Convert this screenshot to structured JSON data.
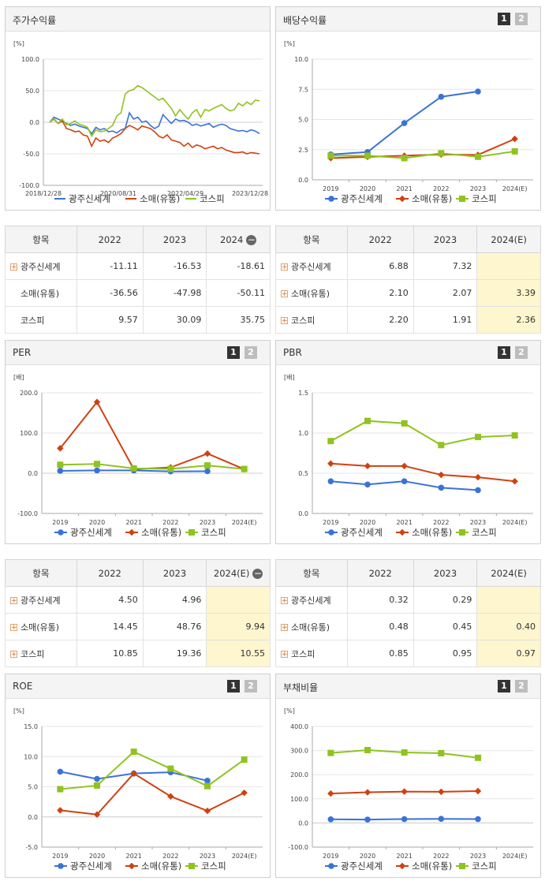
{
  "colors": {
    "company": "#3a72d8",
    "retail": "#d0410f",
    "kospi": "#8fc31f"
  },
  "legend": [
    "광주신세계",
    "소매(유통)",
    "코스피"
  ],
  "panels": {
    "stock": {
      "title": "주가수익률",
      "unit": "[%]",
      "chart_data": {
        "type": "line",
        "title": "주가수익률",
        "ylim": [
          -100,
          100
        ],
        "yticks": [
          "100.0",
          "50.0",
          "0.0",
          "-50.0",
          "-100.0"
        ],
        "xticks": [
          "2018/12/28",
          "2020/08/31",
          "2022/04/29",
          "2023/12/28"
        ],
        "series": [
          {
            "name": "광주신세계",
            "x": [
              0,
              2,
              4,
              6,
              8,
              10,
              12,
              14,
              16,
              18,
              20,
              22,
              24,
              26,
              28,
              30,
              32,
              34,
              36,
              38,
              40,
              42,
              44,
              46,
              48,
              50,
              52,
              54,
              56,
              58,
              60,
              62,
              64,
              66,
              68,
              70,
              72,
              74,
              76,
              78,
              80,
              82,
              84,
              86,
              88,
              90,
              92,
              94,
              96,
              98,
              100
            ],
            "values": [
              0,
              8,
              5,
              2,
              -2,
              -5,
              -3,
              -6,
              -8,
              -10,
              -18,
              -8,
              -12,
              -10,
              -15,
              -14,
              -17,
              -12,
              -10,
              15,
              5,
              8,
              0,
              2,
              -5,
              -10,
              -6,
              12,
              5,
              -2,
              5,
              2,
              3,
              0,
              -5,
              -3,
              -6,
              -4,
              -2,
              -8,
              -5,
              -3,
              -5,
              -10,
              -12,
              -14,
              -13,
              -15,
              -12,
              -14,
              -18
            ]
          },
          {
            "name": "소매(유통)",
            "x": [
              0,
              2,
              4,
              6,
              8,
              10,
              12,
              14,
              16,
              18,
              20,
              22,
              24,
              26,
              28,
              30,
              32,
              34,
              36,
              38,
              40,
              42,
              44,
              46,
              48,
              50,
              52,
              54,
              56,
              58,
              60,
              62,
              64,
              66,
              68,
              70,
              72,
              74,
              76,
              78,
              80,
              82,
              84,
              86,
              88,
              90,
              92,
              94,
              96,
              98,
              100
            ],
            "values": [
              0,
              5,
              -2,
              2,
              -10,
              -12,
              -15,
              -14,
              -20,
              -22,
              -38,
              -25,
              -30,
              -28,
              -32,
              -25,
              -22,
              -18,
              -10,
              -5,
              -8,
              -12,
              -6,
              -8,
              -10,
              -15,
              -22,
              -25,
              -20,
              -28,
              -30,
              -32,
              -38,
              -33,
              -40,
              -36,
              -38,
              -42,
              -40,
              -38,
              -42,
              -40,
              -44,
              -46,
              -48,
              -48,
              -47,
              -50,
              -48,
              -49,
              -50
            ]
          },
          {
            "name": "코스피",
            "x": [
              0,
              2,
              4,
              6,
              8,
              10,
              12,
              14,
              16,
              18,
              20,
              22,
              24,
              26,
              28,
              30,
              32,
              34,
              36,
              38,
              40,
              42,
              44,
              46,
              48,
              50,
              52,
              54,
              56,
              58,
              60,
              62,
              64,
              66,
              68,
              70,
              72,
              74,
              76,
              78,
              80,
              82,
              84,
              86,
              88,
              90,
              92,
              94,
              96,
              98,
              100
            ],
            "values": [
              0,
              6,
              -2,
              5,
              -4,
              -2,
              2,
              -3,
              -5,
              -8,
              -22,
              -12,
              -15,
              -14,
              -10,
              -5,
              10,
              15,
              45,
              50,
              52,
              58,
              55,
              50,
              45,
              40,
              35,
              38,
              30,
              22,
              10,
              20,
              12,
              5,
              15,
              20,
              8,
              20,
              18,
              22,
              25,
              28,
              22,
              18,
              20,
              30,
              26,
              32,
              28,
              35,
              34
            ]
          }
        ]
      }
    },
    "stock_table": {
      "headers": [
        "항목",
        "2022",
        "2023",
        "2024"
      ],
      "rows": [
        {
          "name": "광주신세계",
          "values": [
            "-11.11",
            "-16.53",
            "-18.61"
          ],
          "plus": true
        },
        {
          "name": "소매(유통)",
          "values": [
            "-36.56",
            "-47.98",
            "-50.11"
          ],
          "plus": false
        },
        {
          "name": "코스피",
          "values": [
            "9.57",
            "30.09",
            "35.75"
          ],
          "plus": false
        }
      ]
    },
    "dividend": {
      "title": "배당수익률",
      "unit": "[%]",
      "page1": "1",
      "page2": "2",
      "chart_data": {
        "type": "line",
        "title": "배당수익률",
        "ylim": [
          0,
          10
        ],
        "yticks": [
          "10.0",
          "7.5",
          "5.0",
          "2.5",
          "0.0"
        ],
        "categories": [
          "2019",
          "2020",
          "2021",
          "2022",
          "2023",
          "2024(E)"
        ],
        "series": [
          {
            "name": "광주신세계",
            "values": [
              2.1,
              2.3,
              4.7,
              6.88,
              7.32,
              null
            ]
          },
          {
            "name": "소매(유통)",
            "values": [
              1.8,
              1.9,
              2.0,
              2.1,
              2.07,
              3.39
            ]
          },
          {
            "name": "코스피",
            "values": [
              2.0,
              2.0,
              1.8,
              2.2,
              1.91,
              2.36
            ]
          }
        ]
      }
    },
    "dividend_table": {
      "headers": [
        "항목",
        "2022",
        "2023",
        "2024(E)"
      ],
      "rows": [
        {
          "name": "광주신세계",
          "values": [
            "6.88",
            "7.32",
            ""
          ],
          "plus": true
        },
        {
          "name": "소매(유통)",
          "values": [
            "2.10",
            "2.07",
            "3.39"
          ],
          "plus": true
        },
        {
          "name": "코스피",
          "values": [
            "2.20",
            "1.91",
            "2.36"
          ],
          "plus": true
        }
      ]
    },
    "per": {
      "title": "PER",
      "unit": "[배]",
      "page1": "1",
      "page2": "2",
      "chart_data": {
        "type": "line",
        "title": "PER",
        "ylim": [
          -100,
          200
        ],
        "yticks": [
          "200.0",
          "100.0",
          "0.0",
          "-100.0"
        ],
        "categories": [
          "2019",
          "2020",
          "2021",
          "2022",
          "2023",
          "2024(E)"
        ],
        "series": [
          {
            "name": "광주신세계",
            "values": [
              6,
              7,
              7,
              4.5,
              4.96,
              null
            ]
          },
          {
            "name": "소매(유통)",
            "values": [
              62,
              177,
              10,
              14.45,
              48.76,
              9.94
            ]
          },
          {
            "name": "코스피",
            "values": [
              21,
              23,
              12,
              10.85,
              19.36,
              10.55
            ]
          }
        ]
      }
    },
    "per_table": {
      "headers": [
        "항목",
        "2022",
        "2023",
        "2024(E)"
      ],
      "rows": [
        {
          "name": "광주신세계",
          "values": [
            "4.50",
            "4.96",
            ""
          ],
          "plus": true
        },
        {
          "name": "소매(유통)",
          "values": [
            "14.45",
            "48.76",
            "9.94"
          ],
          "plus": true
        },
        {
          "name": "코스피",
          "values": [
            "10.85",
            "19.36",
            "10.55"
          ],
          "plus": true
        }
      ]
    },
    "pbr": {
      "title": "PBR",
      "unit": "[배]",
      "page1": "1",
      "page2": "2",
      "chart_data": {
        "type": "line",
        "title": "PBR",
        "ylim": [
          0,
          1.5
        ],
        "yticks": [
          "1.5",
          "1.0",
          "0.5",
          "0.0"
        ],
        "categories": [
          "2019",
          "2020",
          "2021",
          "2022",
          "2023",
          "2024(E)"
        ],
        "series": [
          {
            "name": "광주신세계",
            "values": [
              0.4,
              0.36,
              0.4,
              0.32,
              0.29,
              null
            ]
          },
          {
            "name": "소매(유통)",
            "values": [
              0.62,
              0.59,
              0.59,
              0.48,
              0.45,
              0.4
            ]
          },
          {
            "name": "코스피",
            "values": [
              0.9,
              1.15,
              1.12,
              0.85,
              0.95,
              0.97
            ]
          }
        ]
      }
    },
    "pbr_table": {
      "headers": [
        "항목",
        "2022",
        "2023",
        "2024(E)"
      ],
      "rows": [
        {
          "name": "광주신세계",
          "values": [
            "0.32",
            "0.29",
            ""
          ],
          "plus": true
        },
        {
          "name": "소매(유통)",
          "values": [
            "0.48",
            "0.45",
            "0.40"
          ],
          "plus": true
        },
        {
          "name": "코스피",
          "values": [
            "0.85",
            "0.95",
            "0.97"
          ],
          "plus": true
        }
      ]
    },
    "roe": {
      "title": "ROE",
      "unit": "[%]",
      "page1": "1",
      "page2": "2",
      "chart_data": {
        "type": "line",
        "title": "ROE",
        "ylim": [
          -5,
          15
        ],
        "yticks": [
          "15.0",
          "10.0",
          "5.0",
          "0.0",
          "-5.0"
        ],
        "categories": [
          "2019",
          "2020",
          "2021",
          "2022",
          "2023",
          "2024(E)"
        ],
        "series": [
          {
            "name": "광주신세계",
            "values": [
              7.5,
              6.3,
              7.2,
              7.4,
              6.0,
              null
            ]
          },
          {
            "name": "소매(유통)",
            "values": [
              1.1,
              0.4,
              7.2,
              3.4,
              1.0,
              4.0
            ]
          },
          {
            "name": "코스피",
            "values": [
              4.6,
              5.2,
              10.8,
              8.0,
              5.1,
              9.5
            ]
          }
        ]
      }
    },
    "debt": {
      "title": "부채비율",
      "unit": "[%]",
      "page1": "1",
      "page2": "2",
      "chart_data": {
        "type": "line",
        "title": "부채비율",
        "ylim": [
          -100,
          400
        ],
        "yticks": [
          "400.0",
          "300.0",
          "200.0",
          "100.0",
          "0.0",
          "-100.0"
        ],
        "categories": [
          "2019",
          "2020",
          "2021",
          "2022",
          "2023",
          "2024(E)"
        ],
        "series": [
          {
            "name": "광주신세계",
            "values": [
              15,
              14,
              16,
              17,
              16,
              null
            ]
          },
          {
            "name": "소매(유통)",
            "values": [
              122,
              127,
              130,
              129,
              132,
              null
            ]
          },
          {
            "name": "코스피",
            "values": [
              290,
              302,
              292,
              289,
              270,
              null
            ]
          }
        ]
      }
    }
  }
}
